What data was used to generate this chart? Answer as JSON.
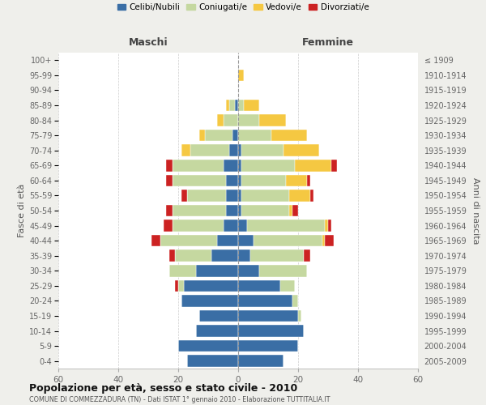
{
  "age_groups": [
    "0-4",
    "5-9",
    "10-14",
    "15-19",
    "20-24",
    "25-29",
    "30-34",
    "35-39",
    "40-44",
    "45-49",
    "50-54",
    "55-59",
    "60-64",
    "65-69",
    "70-74",
    "75-79",
    "80-84",
    "85-89",
    "90-94",
    "95-99",
    "100+"
  ],
  "birth_years": [
    "2005-2009",
    "2000-2004",
    "1995-1999",
    "1990-1994",
    "1985-1989",
    "1980-1984",
    "1975-1979",
    "1970-1974",
    "1965-1969",
    "1960-1964",
    "1955-1959",
    "1950-1954",
    "1945-1949",
    "1940-1944",
    "1935-1939",
    "1930-1934",
    "1925-1929",
    "1920-1924",
    "1915-1919",
    "1910-1914",
    "≤ 1909"
  ],
  "maschi": {
    "celibi": [
      17,
      20,
      14,
      13,
      19,
      18,
      14,
      9,
      7,
      5,
      4,
      4,
      4,
      5,
      3,
      2,
      0,
      1,
      0,
      0,
      0
    ],
    "coniugati": [
      0,
      0,
      0,
      0,
      0,
      2,
      9,
      12,
      19,
      17,
      18,
      13,
      18,
      17,
      13,
      9,
      5,
      2,
      0,
      0,
      0
    ],
    "vedovi": [
      0,
      0,
      0,
      0,
      0,
      0,
      0,
      0,
      0,
      0,
      0,
      0,
      0,
      0,
      3,
      2,
      2,
      1,
      0,
      0,
      0
    ],
    "divorziati": [
      0,
      0,
      0,
      0,
      0,
      1,
      0,
      2,
      3,
      3,
      2,
      2,
      2,
      2,
      0,
      0,
      0,
      0,
      0,
      0,
      0
    ]
  },
  "femmine": {
    "nubili": [
      15,
      20,
      22,
      20,
      18,
      14,
      7,
      4,
      5,
      3,
      1,
      1,
      1,
      1,
      1,
      0,
      0,
      0,
      0,
      0,
      0
    ],
    "coniugate": [
      0,
      0,
      0,
      1,
      2,
      5,
      16,
      18,
      23,
      26,
      16,
      16,
      15,
      18,
      14,
      11,
      7,
      2,
      0,
      0,
      0
    ],
    "vedove": [
      0,
      0,
      0,
      0,
      0,
      0,
      0,
      0,
      1,
      1,
      1,
      7,
      7,
      12,
      12,
      12,
      9,
      5,
      0,
      2,
      0
    ],
    "divorziate": [
      0,
      0,
      0,
      0,
      0,
      0,
      0,
      2,
      3,
      1,
      2,
      1,
      1,
      2,
      0,
      0,
      0,
      0,
      0,
      0,
      0
    ]
  },
  "colors": {
    "celibi": "#3a6ea5",
    "coniugati": "#c5d8a0",
    "vedovi": "#f5c842",
    "divorziati": "#cc2222"
  },
  "xlim": 60,
  "title": "Popolazione per età, sesso e stato civile - 2010",
  "subtitle": "COMUNE DI COMMEZZADURA (TN) - Dati ISTAT 1° gennaio 2010 - Elaborazione TUTTITALIA.IT",
  "xlabel_left": "Maschi",
  "xlabel_right": "Femmine",
  "ylabel_left": "Fasce di età",
  "ylabel_right": "Anni di nascita",
  "legend_labels": [
    "Celibi/Nubili",
    "Coniugati/e",
    "Vedovi/e",
    "Divorziati/e"
  ],
  "bg_color": "#efefeb",
  "plot_bg_color": "#ffffff"
}
